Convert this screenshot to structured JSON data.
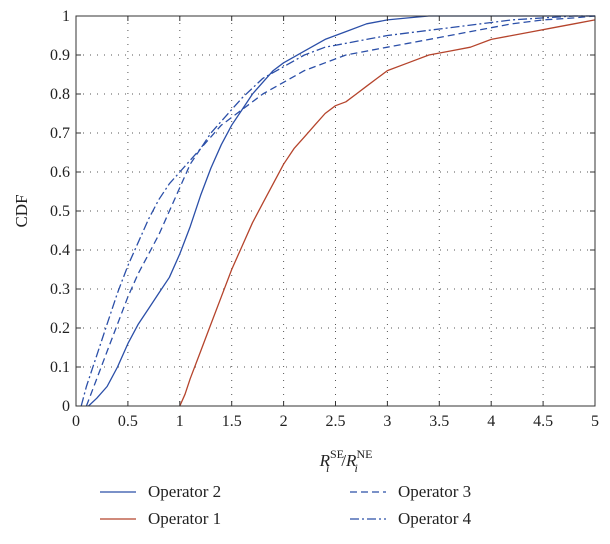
{
  "chart_data": {
    "type": "line",
    "title": "",
    "ylabel": "CDF",
    "xlabel_parts": {
      "base1": "R",
      "sub1": "i",
      "sup1": "SE",
      "slash": "/",
      "base2": "R",
      "sub2": "i",
      "sup2": "NE"
    },
    "xlim": [
      0,
      5
    ],
    "ylim": [
      0,
      1
    ],
    "xticks": [
      "0",
      "0.5",
      "1",
      "1.5",
      "2",
      "2.5",
      "3",
      "3.5",
      "4",
      "4.5",
      "5"
    ],
    "yticks": [
      "0",
      "0.1",
      "0.2",
      "0.3",
      "0.4",
      "0.5",
      "0.6",
      "0.7",
      "0.8",
      "0.9",
      "1"
    ],
    "grid": true,
    "legend_position": "bottom",
    "series": [
      {
        "name": "Operator 2",
        "color": "#2b4fa8",
        "dash": "solid",
        "x": [
          0.12,
          0.2,
          0.3,
          0.4,
          0.5,
          0.6,
          0.7,
          0.8,
          0.9,
          1.0,
          1.1,
          1.2,
          1.3,
          1.4,
          1.5,
          1.6,
          1.7,
          1.8,
          1.9,
          2.0,
          2.2,
          2.4,
          2.6,
          2.8,
          3.0,
          3.2,
          3.4,
          5.0
        ],
        "y": [
          0.0,
          0.02,
          0.05,
          0.1,
          0.16,
          0.21,
          0.25,
          0.29,
          0.33,
          0.39,
          0.46,
          0.54,
          0.61,
          0.67,
          0.72,
          0.76,
          0.8,
          0.83,
          0.86,
          0.88,
          0.91,
          0.94,
          0.96,
          0.98,
          0.99,
          0.995,
          1.0,
          1.0
        ]
      },
      {
        "name": "Operator 1",
        "color": "#b5442c",
        "dash": "solid",
        "x": [
          1.0,
          1.05,
          1.1,
          1.2,
          1.3,
          1.4,
          1.5,
          1.6,
          1.7,
          1.8,
          1.9,
          2.0,
          2.1,
          2.2,
          2.3,
          2.4,
          2.5,
          2.6,
          2.7,
          2.8,
          2.9,
          3.0,
          3.2,
          3.4,
          3.6,
          3.8,
          4.0,
          4.2,
          4.4,
          4.6,
          4.8,
          5.0
        ],
        "y": [
          0.0,
          0.03,
          0.07,
          0.14,
          0.21,
          0.28,
          0.35,
          0.41,
          0.47,
          0.52,
          0.57,
          0.62,
          0.66,
          0.69,
          0.72,
          0.75,
          0.77,
          0.78,
          0.8,
          0.82,
          0.84,
          0.86,
          0.88,
          0.9,
          0.91,
          0.92,
          0.94,
          0.95,
          0.96,
          0.97,
          0.98,
          0.99
        ]
      },
      {
        "name": "Operator 3",
        "color": "#2b4fa8",
        "dash": "dashed",
        "x": [
          0.1,
          0.2,
          0.3,
          0.4,
          0.5,
          0.6,
          0.7,
          0.8,
          0.9,
          1.0,
          1.1,
          1.2,
          1.3,
          1.4,
          1.5,
          1.6,
          1.8,
          2.0,
          2.2,
          2.4,
          2.6,
          2.8,
          3.0,
          3.2,
          3.5,
          3.8,
          4.0,
          4.2,
          4.5,
          4.8,
          5.0
        ],
        "y": [
          0.0,
          0.07,
          0.14,
          0.21,
          0.28,
          0.34,
          0.39,
          0.44,
          0.5,
          0.56,
          0.62,
          0.66,
          0.69,
          0.72,
          0.74,
          0.76,
          0.8,
          0.83,
          0.86,
          0.88,
          0.9,
          0.91,
          0.92,
          0.93,
          0.945,
          0.96,
          0.97,
          0.98,
          0.99,
          0.995,
          1.0
        ]
      },
      {
        "name": "Operator 4",
        "color": "#2b4fa8",
        "dash": "dashdot",
        "x": [
          0.05,
          0.1,
          0.2,
          0.3,
          0.4,
          0.5,
          0.6,
          0.7,
          0.8,
          0.9,
          1.0,
          1.1,
          1.2,
          1.3,
          1.4,
          1.5,
          1.6,
          1.8,
          2.0,
          2.2,
          2.4,
          2.6,
          2.8,
          3.0,
          3.3,
          3.6,
          3.9,
          4.2,
          4.5,
          4.8,
          5.0
        ],
        "y": [
          0.0,
          0.05,
          0.13,
          0.21,
          0.29,
          0.36,
          0.42,
          0.48,
          0.53,
          0.57,
          0.6,
          0.63,
          0.66,
          0.7,
          0.73,
          0.76,
          0.79,
          0.84,
          0.87,
          0.9,
          0.92,
          0.93,
          0.94,
          0.95,
          0.96,
          0.97,
          0.98,
          0.99,
          0.995,
          1.0,
          1.0
        ]
      }
    ]
  }
}
